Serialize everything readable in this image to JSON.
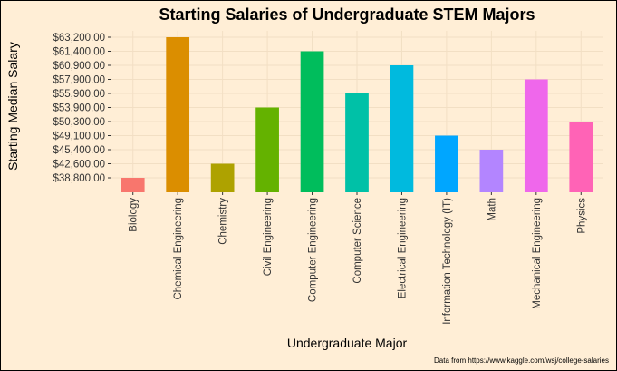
{
  "chart_data": {
    "type": "bar",
    "title": "Starting Salaries of Undergraduate STEM Majors",
    "xlabel": "Undergraduate Major",
    "ylabel": "Starting Median Salary",
    "caption": "Data from https://www.kaggle.com/wsj/college-salaries",
    "categories": [
      "Biology",
      "Chemical Engineering",
      "Chemistry",
      "Civil Engineering",
      "Computer Engineering",
      "Computer Science",
      "Electrical Engineering",
      "Information Technology (IT)",
      "Math",
      "Mechanical Engineering",
      "Physics"
    ],
    "values": [
      38800,
      63200,
      42600,
      53900,
      61400,
      55900,
      60900,
      49100,
      45400,
      57900,
      50300
    ],
    "colors": [
      "#F8766D",
      "#DB8E00",
      "#AEA200",
      "#64B200",
      "#00BD5C",
      "#00C1A7",
      "#00BADE",
      "#00A6FF",
      "#B385FF",
      "#EF67EB",
      "#FF63B6"
    ],
    "y_tick_labels": [
      "$38,800.00",
      "$42,600.00",
      "$45,400.00",
      "$49,100.00",
      "$50,300.00",
      "$53,900.00",
      "$55,900.00",
      "$57,900.00",
      "$60,900.00",
      "$61,400.00",
      "$63,200.00"
    ],
    "y_tick_values": [
      38800,
      42600,
      45400,
      49100,
      50300,
      53900,
      55900,
      57900,
      60900,
      61400,
      63200
    ],
    "grid": true,
    "background": "#ffeed6",
    "grid_color": "#f2dfc4"
  }
}
